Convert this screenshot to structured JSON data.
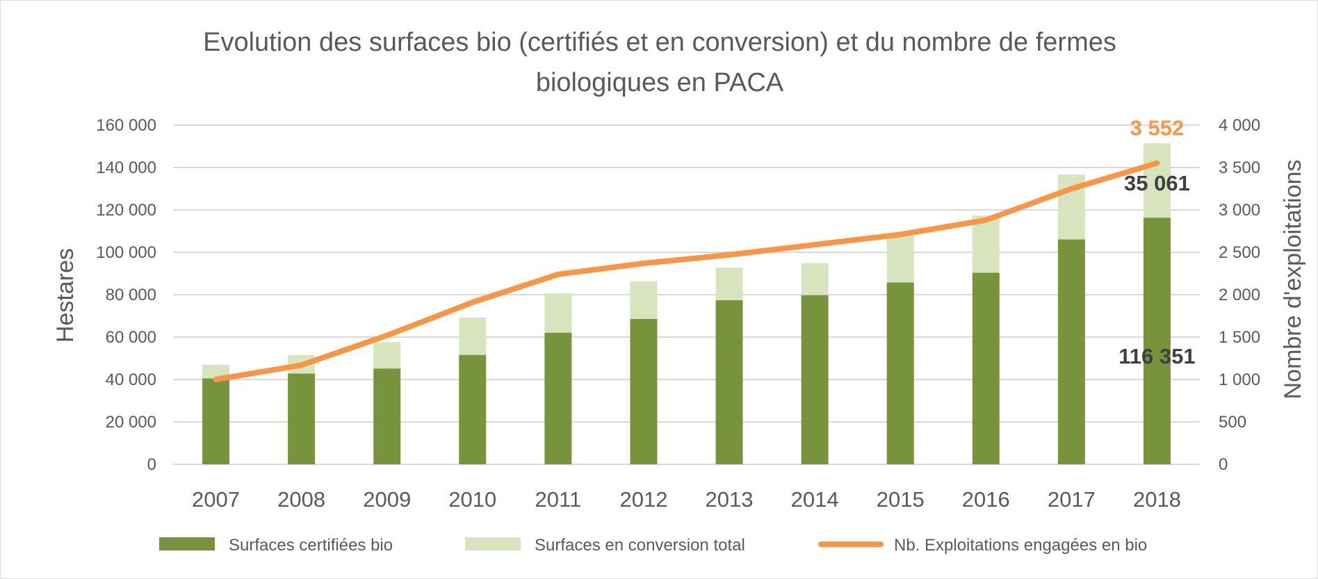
{
  "chart_data": {
    "type": "bar",
    "title_lines": [
      "Evolution des surfaces bio (certifiés et en conversion) et du nombre de fermes",
      "biologiques en PACA"
    ],
    "categories": [
      "2007",
      "2008",
      "2009",
      "2010",
      "2011",
      "2012",
      "2013",
      "2014",
      "2015",
      "2016",
      "2017",
      "2018"
    ],
    "series": [
      {
        "name": "Surfaces certifiées bio",
        "kind": "bar-stacked",
        "axis": "left",
        "color": "#77933c",
        "values": [
          40500,
          42800,
          45200,
          51600,
          62100,
          68600,
          77400,
          79800,
          85800,
          90400,
          106100,
          116351
        ]
      },
      {
        "name": "Surfaces en conversion total",
        "kind": "bar-stacked",
        "axis": "left",
        "color": "#d7e4bd",
        "values": [
          6500,
          8800,
          12400,
          17600,
          18600,
          17800,
          15400,
          15100,
          23200,
          27000,
          30600,
          35061
        ]
      },
      {
        "name": "Nb. Exploitations engagées en bio",
        "kind": "line",
        "axis": "right",
        "color": "#f79646",
        "values": [
          1000,
          1170,
          1520,
          1910,
          2240,
          2370,
          2470,
          2590,
          2710,
          2880,
          3250,
          3552
        ]
      }
    ],
    "y_left": {
      "label": "Hestares",
      "min": 0,
      "max": 160000,
      "ticks": [
        0,
        20000,
        40000,
        60000,
        80000,
        100000,
        120000,
        140000,
        160000
      ],
      "tick_labels": [
        "0",
        "20 000",
        "40 000",
        "60 000",
        "80 000",
        "100 000",
        "120 000",
        "140 000",
        "160 000"
      ]
    },
    "y_right": {
      "label": "Nombre d'exploitations",
      "min": 0,
      "max": 4000,
      "ticks": [
        0,
        500,
        1000,
        1500,
        2000,
        2500,
        3000,
        3500,
        4000
      ],
      "tick_labels": [
        "0",
        "500",
        "1 000",
        "1 500",
        "2 000",
        "2 500",
        "3 000",
        "3 500",
        "4 000"
      ]
    },
    "annotations": [
      {
        "text": "3 552",
        "target": "line-last",
        "color": "#f79646"
      },
      {
        "text": "35 061",
        "target": "conversion-last",
        "color": "#404040"
      },
      {
        "text": "116 351",
        "target": "certified-last",
        "color": "#404040"
      }
    ],
    "grid": true,
    "legend_position": "bottom"
  }
}
